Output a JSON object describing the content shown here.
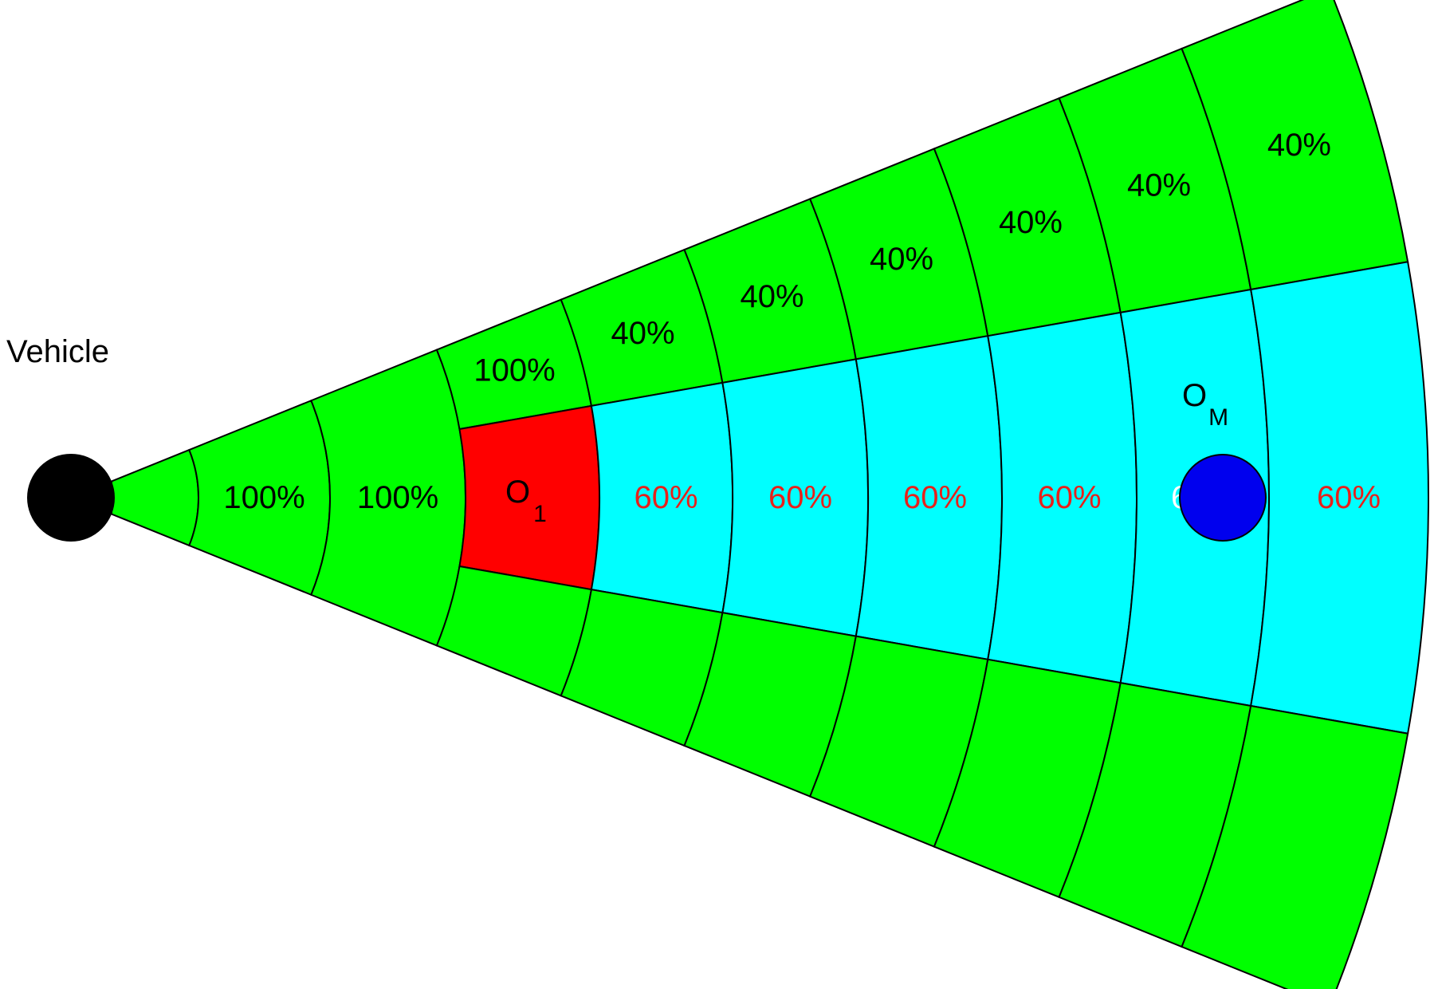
{
  "vehicle": {
    "label": "Vehicle",
    "color": "#000000"
  },
  "colors": {
    "free": "#00ff00",
    "corridor": "#00ffff",
    "occupied": "#ff0000",
    "moving_object": "#0000ee",
    "text_dark": "#000000",
    "text_corridor": "#e8201a",
    "text_on_object": "#ffffff",
    "outline": "#000000"
  },
  "objects": {
    "o1": {
      "base": "O",
      "sub": "1"
    },
    "om": {
      "base": "O",
      "sub": "M"
    }
  },
  "rings": [
    {
      "upper": "",
      "middle": "100%",
      "lower": ""
    },
    {
      "upper": "",
      "middle": "100%",
      "lower": ""
    },
    {
      "upper": "100%",
      "middle": "",
      "lower": ""
    },
    {
      "upper": "40%",
      "middle": "60%",
      "lower": ""
    },
    {
      "upper": "40%",
      "middle": "60%",
      "lower": ""
    },
    {
      "upper": "40%",
      "middle": "60%",
      "lower": ""
    },
    {
      "upper": "40%",
      "middle": "60%",
      "lower": ""
    },
    {
      "upper": "40%",
      "middle": "60%",
      "lower": ""
    },
    {
      "upper": "40%",
      "middle": "60%",
      "lower": ""
    }
  ]
}
